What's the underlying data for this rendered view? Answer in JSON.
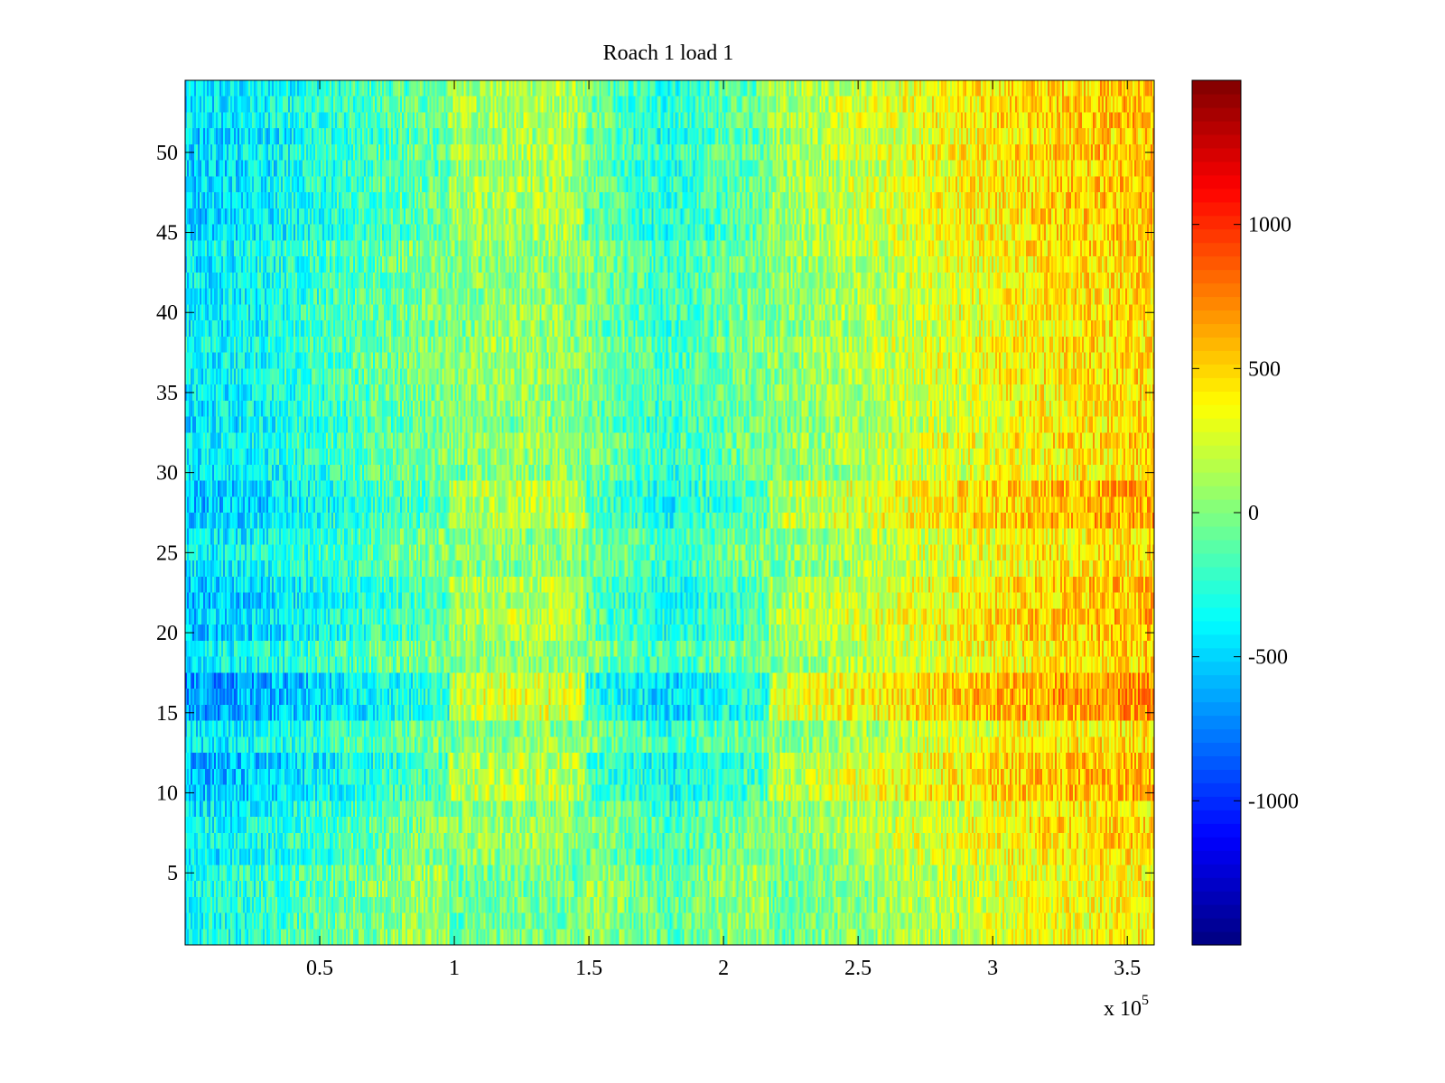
{
  "chart_data": {
    "type": "heatmap",
    "title": "Roach 1 load 1",
    "xlabel": "",
    "ylabel": "",
    "x_exponent_label": "x 10",
    "x_exponent": "5",
    "xlim": [
      0,
      3.6
    ],
    "ylim": [
      0.5,
      54.5
    ],
    "x_ticks": [
      0.5,
      1,
      1.5,
      2,
      2.5,
      3,
      3.5
    ],
    "x_tick_labels": [
      "0.5",
      "1",
      "1.5",
      "2",
      "2.5",
      "3",
      "3.5"
    ],
    "y_ticks": [
      5,
      10,
      15,
      20,
      25,
      30,
      35,
      40,
      45,
      50
    ],
    "y_tick_labels": [
      "5",
      "10",
      "15",
      "20",
      "25",
      "30",
      "35",
      "40",
      "45",
      "50"
    ],
    "rows": 54,
    "colormap": "jet",
    "colorbar": {
      "limits": [
        -1500,
        1500
      ],
      "ticks": [
        -1000,
        -500,
        0,
        500,
        1000
      ],
      "tick_labels": [
        "-1000",
        "-500",
        "0",
        "500",
        "1000"
      ]
    },
    "trend": {
      "description": "mean value vs x (x in units of 10^5)",
      "x": [
        0,
        0.2,
        0.5,
        0.8,
        1.1,
        1.4,
        1.6,
        1.8,
        2.0,
        2.3,
        2.6,
        2.9,
        3.1,
        3.3,
        3.6
      ],
      "mean": [
        -420,
        -380,
        -220,
        -60,
        40,
        60,
        -80,
        -220,
        -80,
        60,
        180,
        300,
        380,
        430,
        480
      ]
    },
    "row_offsets": [
      {
        "rows": [
          15,
          16,
          17
        ],
        "offset": 200
      },
      {
        "rows": [
          10,
          11,
          12
        ],
        "offset": 120
      },
      {
        "rows": [
          20,
          21,
          22,
          23
        ],
        "offset": 90
      },
      {
        "rows": [
          27,
          28,
          29
        ],
        "offset": 110
      },
      {
        "rows": [
          45,
          46,
          47,
          48,
          49,
          50,
          51,
          52,
          53,
          54
        ],
        "offset": 60
      },
      {
        "rows": [
          1,
          2,
          3,
          4,
          5
        ],
        "offset": -80
      }
    ],
    "noise_amplitude": 260
  }
}
